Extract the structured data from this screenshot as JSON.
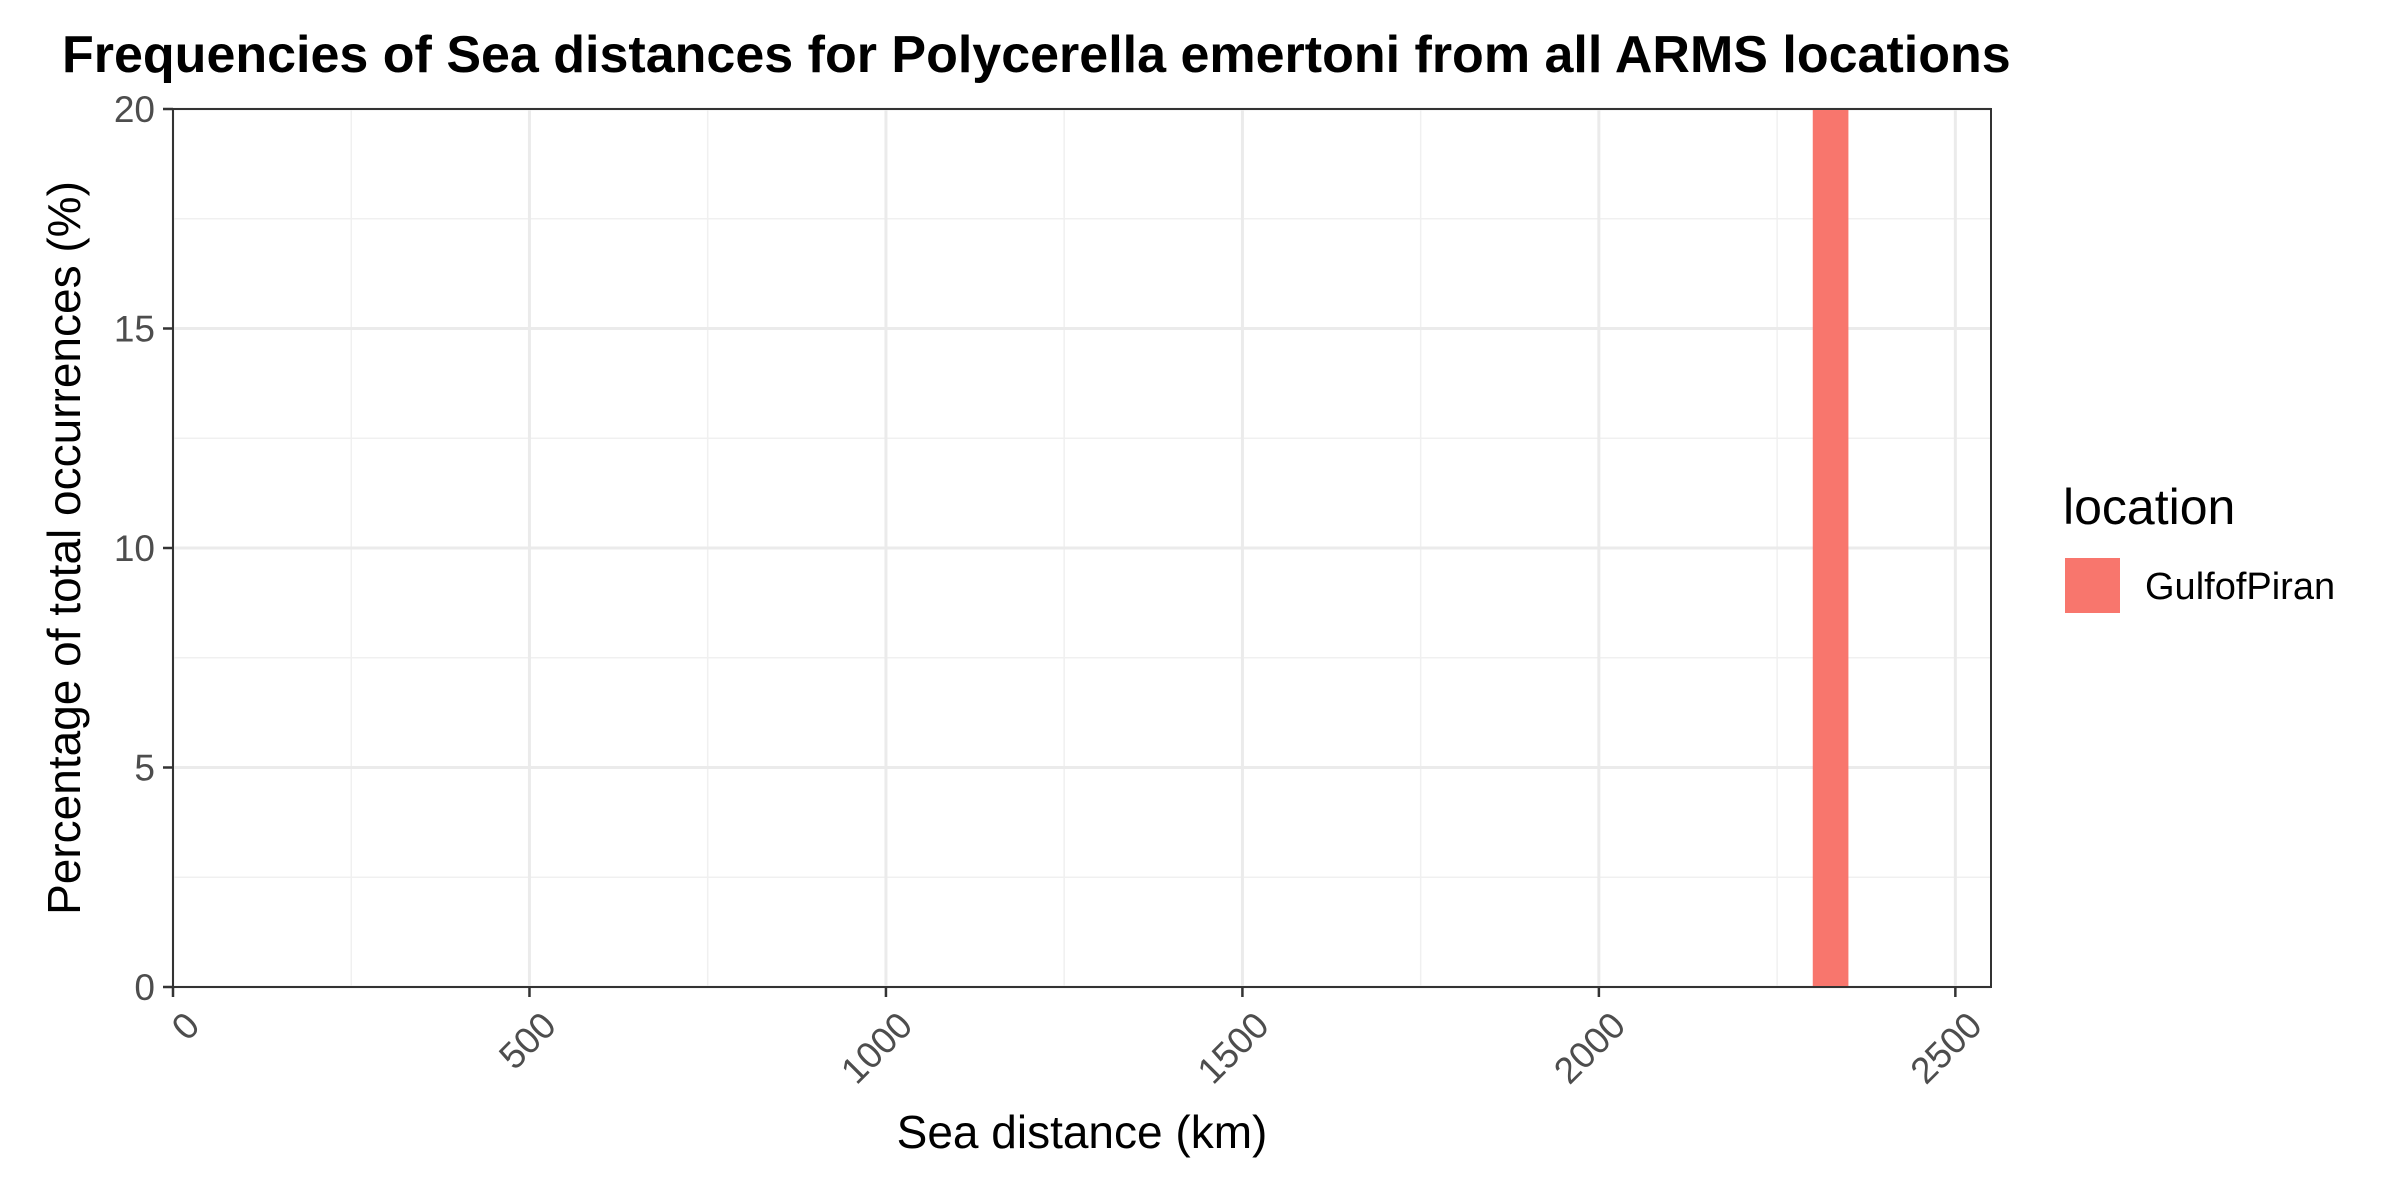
{
  "chart_data": {
    "type": "bar",
    "title": "Frequencies of Sea distances for Polycerella emertoni from all ARMS locations",
    "xlabel": "Sea distance (km)",
    "ylabel": "Percentage of total occurrences (%)",
    "xlim": [
      0,
      2550
    ],
    "ylim": [
      0,
      20
    ],
    "x_ticks": [
      0,
      500,
      1000,
      1500,
      2000,
      2500
    ],
    "y_ticks": [
      0,
      5,
      10,
      15,
      20
    ],
    "grid": true,
    "legend": {
      "title": "location",
      "position": "right",
      "entries": [
        {
          "label": "GulfofPiran",
          "color": "#F8766D"
        }
      ]
    },
    "series": [
      {
        "name": "GulfofPiran",
        "color": "#F8766D",
        "bins": [
          {
            "x_start": 2300,
            "x_end": 2350,
            "value": 20
          }
        ]
      }
    ]
  }
}
